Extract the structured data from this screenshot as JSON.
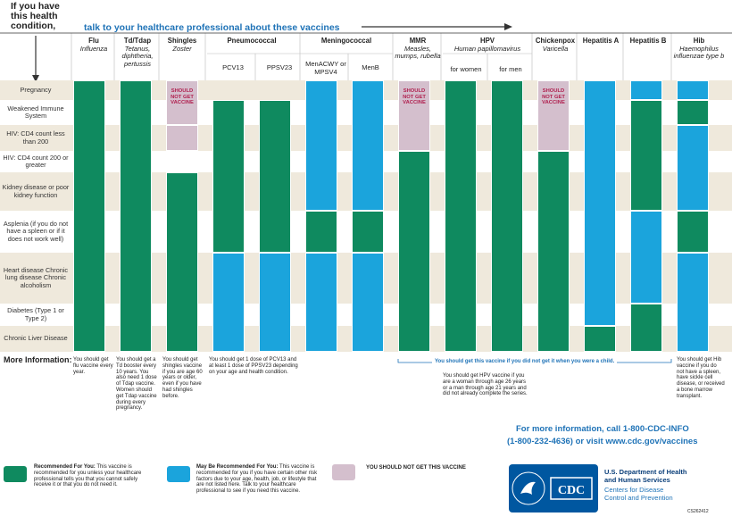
{
  "title": "If you have this health condition,",
  "subtitle": "talk to your healthcare professional about these vaccines",
  "headers": [
    {
      "name": "Flu",
      "sub": "Influenza"
    },
    {
      "name": "Td/Tdap",
      "sub": "Tetanus, diphtheria, pertussis"
    },
    {
      "name": "Shingles",
      "sub": "Zoster"
    },
    {
      "name": "Pneumococcal",
      "sub": ""
    },
    {
      "name": "Meningococcal",
      "sub": ""
    },
    {
      "name": "MMR",
      "sub": "Measles, mumps, rubella"
    },
    {
      "name": "HPV",
      "sub": "Human papillomavirus"
    },
    {
      "name": "Chickenpox",
      "sub": "Varicella"
    },
    {
      "name": "Hepatitis A",
      "sub": ""
    },
    {
      "name": "Hepatitis B",
      "sub": ""
    },
    {
      "name": "Hib",
      "sub": "Haemophilus influenzae type b"
    }
  ],
  "subheaders": [
    "PCV13",
    "PPSV23",
    "MenACWY or MPSV4",
    "MenB",
    "for women",
    "for men"
  ],
  "conditions": [
    "Pregnancy",
    "Weakened Immune System",
    "HIV: CD4 count less than 200",
    "HIV: CD4 count 200 or greater",
    "Kidney disease or poor kidney function",
    "Asplenia (if you do not have a spleen or if it does not work well)",
    "Heart disease Chronic lung disease Chronic alcoholism",
    "Diabetes (Type 1 or Type 2)",
    "Chronic Liver Disease"
  ],
  "should_not": "SHOULD NOT GET VACCINE",
  "more_info": "More Information:",
  "info": {
    "flu": "You should get flu vaccine every year.",
    "td": "You should get a Td booster every 10 years. You also need 1 dose of Tdap vaccine. Women should get Tdap vaccine during every pregnancy.",
    "shingles": "You should get shingles vaccine if you are age 60 years or older, even if you have had shingles before.",
    "pneumo": "You should get 1 dose of PCV13 and at least 1 dose of PPSV23 depending on your age and health condition.",
    "child": "You should get this vaccine if you did not get it when you were a child.",
    "hpv": "You should get HPV vaccine if you are a woman through age 26 years or a man through age 21 years and did not already complete the series.",
    "hib": "You should get Hib vaccine if you do not have a spleen, have sickle cell disease, or received a bone marrow transplant."
  },
  "call": "For more information, call 1-800-CDC-INFO",
  "call2": "(1-800-232-4636) or visit www.cdc.gov/vaccines",
  "legend": {
    "rec_title": "Recommended For You:",
    "rec_text": "This vaccine is recommended for you unless your healthcare professional tells you that you cannot safely receive it or that you do not need it.",
    "may_title": "May Be Recommended For You:",
    "may_text": "This vaccine is recommended for you if you have certain other risk factors due to your age, health, job, or lifestyle that are not listed here. Talk to your healthcare professional to see if you need this vaccine.",
    "not": "YOU SHOULD NOT GET THIS VACCINE"
  },
  "logo_text": "CDC",
  "hhs": "U.S. Department of Health and Human Services",
  "cdc_name": "Centers for Disease Control and Prevention",
  "code": "CS262412",
  "colors": {
    "recommended": "#0f8a5f",
    "may": "#1ba4dc",
    "not": "#d4bfcd",
    "band": "#efe9dc",
    "blue_text": "#1f73b7"
  }
}
